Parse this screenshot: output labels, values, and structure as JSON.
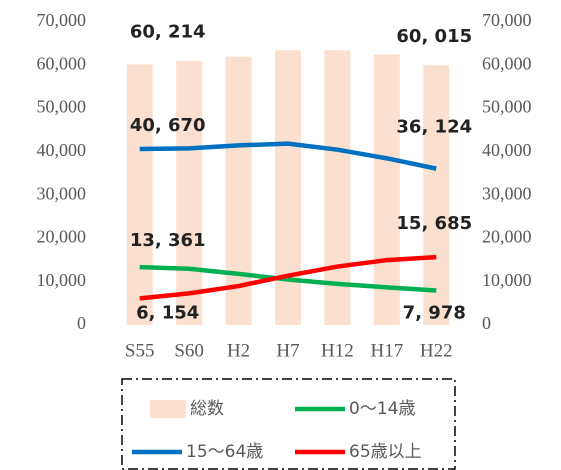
{
  "chart_data": {
    "type": "bar+line",
    "categories": [
      "S55",
      "S60",
      "H2",
      "H7",
      "H12",
      "H17",
      "H22"
    ],
    "series": [
      {
        "name": "総数",
        "type": "bar",
        "color": "#fbe0d0",
        "axis": "y",
        "values": [
          60214,
          61000,
          62000,
          63500,
          63500,
          62500,
          60015
        ],
        "value_labels": [
          "60, 214",
          null,
          null,
          null,
          null,
          null,
          "60, 015"
        ]
      },
      {
        "name": "0～14歳",
        "type": "line",
        "color": "#00b050",
        "axis": "y",
        "values": [
          13361,
          13000,
          11800,
          10500,
          9500,
          8700,
          7978
        ],
        "value_labels": [
          "13, 361",
          null,
          null,
          null,
          null,
          null,
          "7, 978"
        ]
      },
      {
        "name": "15～64歳",
        "type": "line",
        "color": "#0070c0",
        "axis": "y",
        "values": [
          40670,
          40800,
          41500,
          41900,
          40500,
          38500,
          36124
        ],
        "value_labels": [
          "40, 670",
          null,
          null,
          null,
          null,
          null,
          "36, 124"
        ]
      },
      {
        "name": "65歳以上",
        "type": "line",
        "color": "#ff0000",
        "axis": "y",
        "values": [
          6154,
          7300,
          9000,
          11400,
          13500,
          15000,
          15685
        ],
        "value_labels": [
          "6, 154",
          null,
          null,
          null,
          null,
          null,
          "15, 685"
        ]
      }
    ],
    "ylim": [
      0,
      70000
    ],
    "yticks": [
      0,
      {
        "value": 10000,
        "label": "10,000"
      },
      {
        "value": 20000,
        "label": "20,000"
      },
      {
        "value": 30000,
        "label": "30,000"
      },
      {
        "value": 40000,
        "label": "40,000"
      },
      {
        "value": 50000,
        "label": "50,000"
      },
      {
        "value": 60000,
        "label": "60,000"
      },
      {
        "value": 70000,
        "label": "70,000"
      }
    ],
    "y2lim": [
      0,
      70000
    ],
    "y2ticks": [
      0,
      {
        "value": 10000,
        "label": "10,000"
      },
      {
        "value": 20000,
        "label": "20,000"
      },
      {
        "value": 30000,
        "label": "30,000"
      },
      {
        "value": 40000,
        "label": "40,000"
      },
      {
        "value": 50000,
        "label": "50,000"
      },
      {
        "value": 60000,
        "label": "60,000"
      },
      {
        "value": 70000,
        "label": "70,000"
      }
    ],
    "legend": "bottom"
  }
}
